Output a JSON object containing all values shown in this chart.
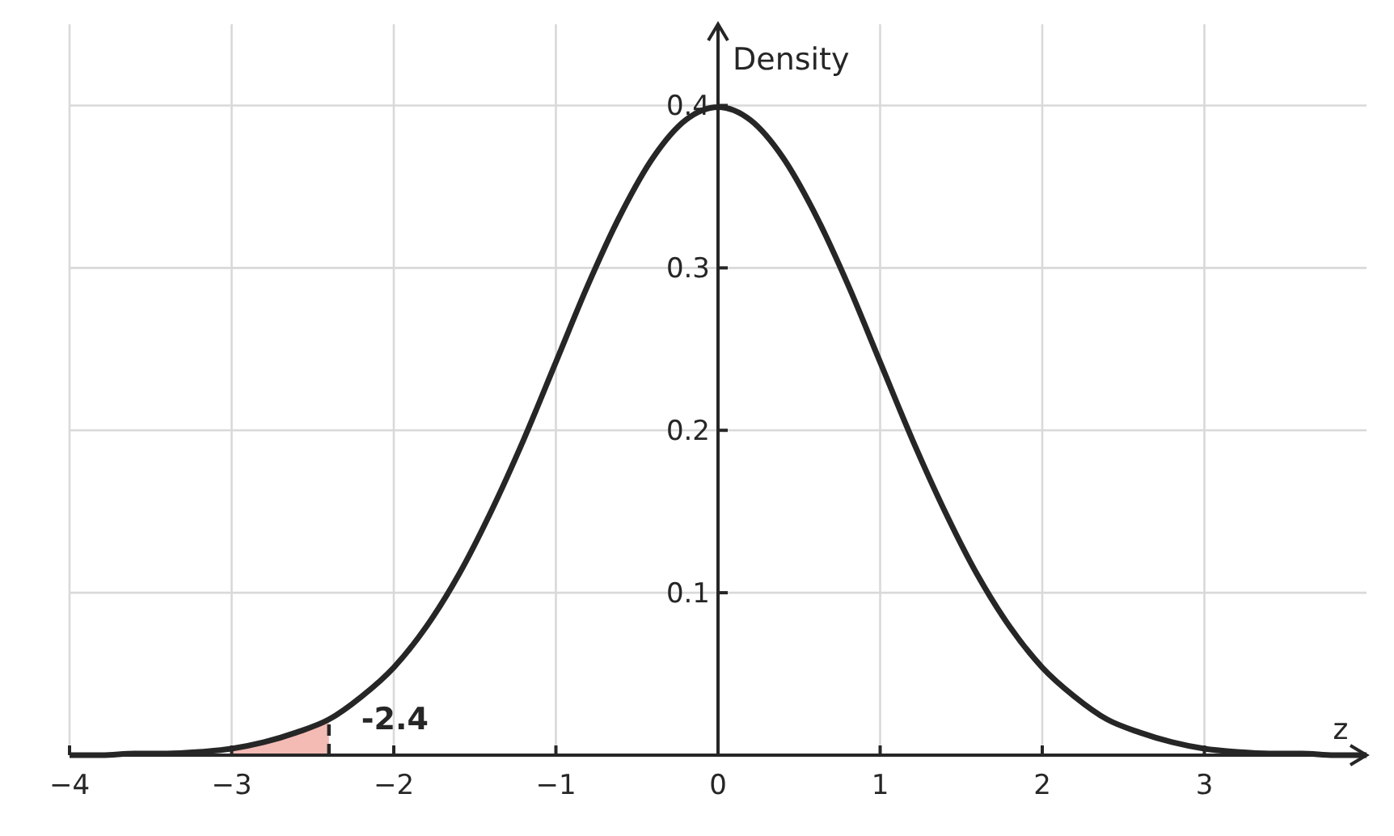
{
  "chart_data": {
    "type": "line",
    "xlabel": "z",
    "ylabel": "Density",
    "x": [
      -4,
      -3.8,
      -3.6,
      -3.4,
      -3.2,
      -3,
      -2.8,
      -2.6,
      -2.4,
      -2.2,
      -2,
      -1.8,
      -1.6,
      -1.4,
      -1.2,
      -1,
      -0.8,
      -0.6,
      -0.4,
      -0.2,
      0,
      0.2,
      0.4,
      0.6,
      0.8,
      1,
      1.2,
      1.4,
      1.6,
      1.8,
      2,
      2.2,
      2.4,
      2.6,
      2.8,
      3,
      3.2,
      3.4,
      3.6,
      3.8,
      4
    ],
    "series": [
      {
        "type": "area",
        "color": "#f4bab4",
        "x": [
          -3,
          -2.8,
          -2.6,
          -2.4
        ],
        "values": [
          0.004,
          0.008,
          0.014,
          0.022
        ]
      },
      {
        "color": "#262626",
        "values": [
          0,
          0,
          0.001,
          0.001,
          0.002,
          0.004,
          0.008,
          0.014,
          0.022,
          0.036,
          0.054,
          0.079,
          0.111,
          0.15,
          0.194,
          0.242,
          0.29,
          0.333,
          0.368,
          0.391,
          0.399,
          0.391,
          0.368,
          0.333,
          0.29,
          0.242,
          0.194,
          0.15,
          0.111,
          0.079,
          0.054,
          0.036,
          0.022,
          0.014,
          0.008,
          0.004,
          0.002,
          0.001,
          0.001,
          0,
          0
        ]
      }
    ],
    "ref_lines": [
      {
        "axis": "x",
        "value": -2.4,
        "label": "-2.4",
        "color": "#262626",
        "line_style": "dashed"
      }
    ],
    "xlim": [
      -4,
      4
    ],
    "ylim": [
      0,
      0.45
    ],
    "xticks": [
      {
        "value": -4,
        "label": "−4"
      },
      {
        "value": -3,
        "label": "−3"
      },
      {
        "value": -2,
        "label": "−2"
      },
      {
        "value": -1,
        "label": "−1"
      },
      0,
      1,
      2,
      3
    ],
    "yticks": [
      0.1,
      0.2,
      0.3,
      0.4
    ],
    "grid": true,
    "marker": "none",
    "line_style": "solid"
  }
}
